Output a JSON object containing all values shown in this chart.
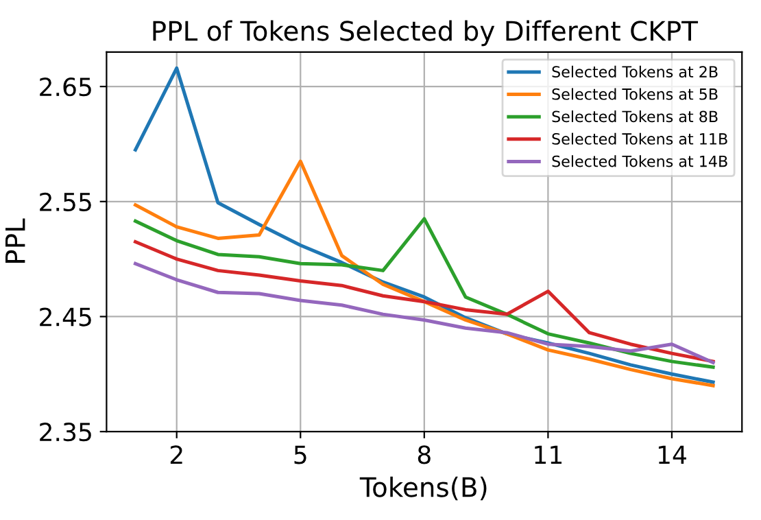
{
  "chart_data": {
    "type": "line",
    "title": "PPL of Tokens Selected by Different CKPT",
    "xlabel": "Tokens(B)",
    "ylabel": "PPL",
    "x": [
      1,
      2,
      3,
      4,
      5,
      6,
      7,
      8,
      9,
      10,
      11,
      12,
      13,
      14,
      15
    ],
    "series": [
      {
        "name": "Selected Tokens at 2B",
        "color": "#1f77b4",
        "values": [
          2.595,
          2.666,
          2.549,
          2.53,
          2.512,
          2.497,
          2.48,
          2.467,
          2.449,
          2.435,
          2.427,
          2.418,
          2.408,
          2.4,
          2.393
        ]
      },
      {
        "name": "Selected Tokens at 5B",
        "color": "#ff7f0e",
        "values": [
          2.547,
          2.528,
          2.518,
          2.521,
          2.585,
          2.503,
          2.478,
          2.463,
          2.447,
          2.435,
          2.421,
          2.413,
          2.404,
          2.396,
          2.39
        ]
      },
      {
        "name": "Selected Tokens at 8B",
        "color": "#2ca02c",
        "values": [
          2.533,
          2.516,
          2.504,
          2.502,
          2.496,
          2.495,
          2.49,
          2.535,
          2.467,
          2.452,
          2.435,
          2.427,
          2.418,
          2.411,
          2.406
        ]
      },
      {
        "name": "Selected Tokens at 11B",
        "color": "#d62728",
        "values": [
          2.515,
          2.5,
          2.49,
          2.486,
          2.481,
          2.477,
          2.468,
          2.463,
          2.456,
          2.452,
          2.472,
          2.436,
          2.426,
          2.418,
          2.411
        ]
      },
      {
        "name": "Selected Tokens at 14B",
        "color": "#9467bd",
        "values": [
          2.496,
          2.482,
          2.471,
          2.47,
          2.464,
          2.46,
          2.452,
          2.447,
          2.44,
          2.436,
          2.426,
          2.424,
          2.42,
          2.426,
          2.41
        ]
      }
    ],
    "xlim": [
      0.3,
      15.7
    ],
    "ylim": [
      2.35,
      2.68
    ],
    "xticks": [
      2,
      5,
      8,
      11,
      14
    ],
    "yticks": [
      {
        "value": 2.35,
        "label": "2.35"
      },
      {
        "value": 2.45,
        "label": "2.45"
      },
      {
        "value": 2.55,
        "label": "2.55"
      },
      {
        "value": 2.65,
        "label": "2.65"
      }
    ],
    "grid": true,
    "legend": "top right",
    "marker": "none",
    "line_style": "solid"
  }
}
